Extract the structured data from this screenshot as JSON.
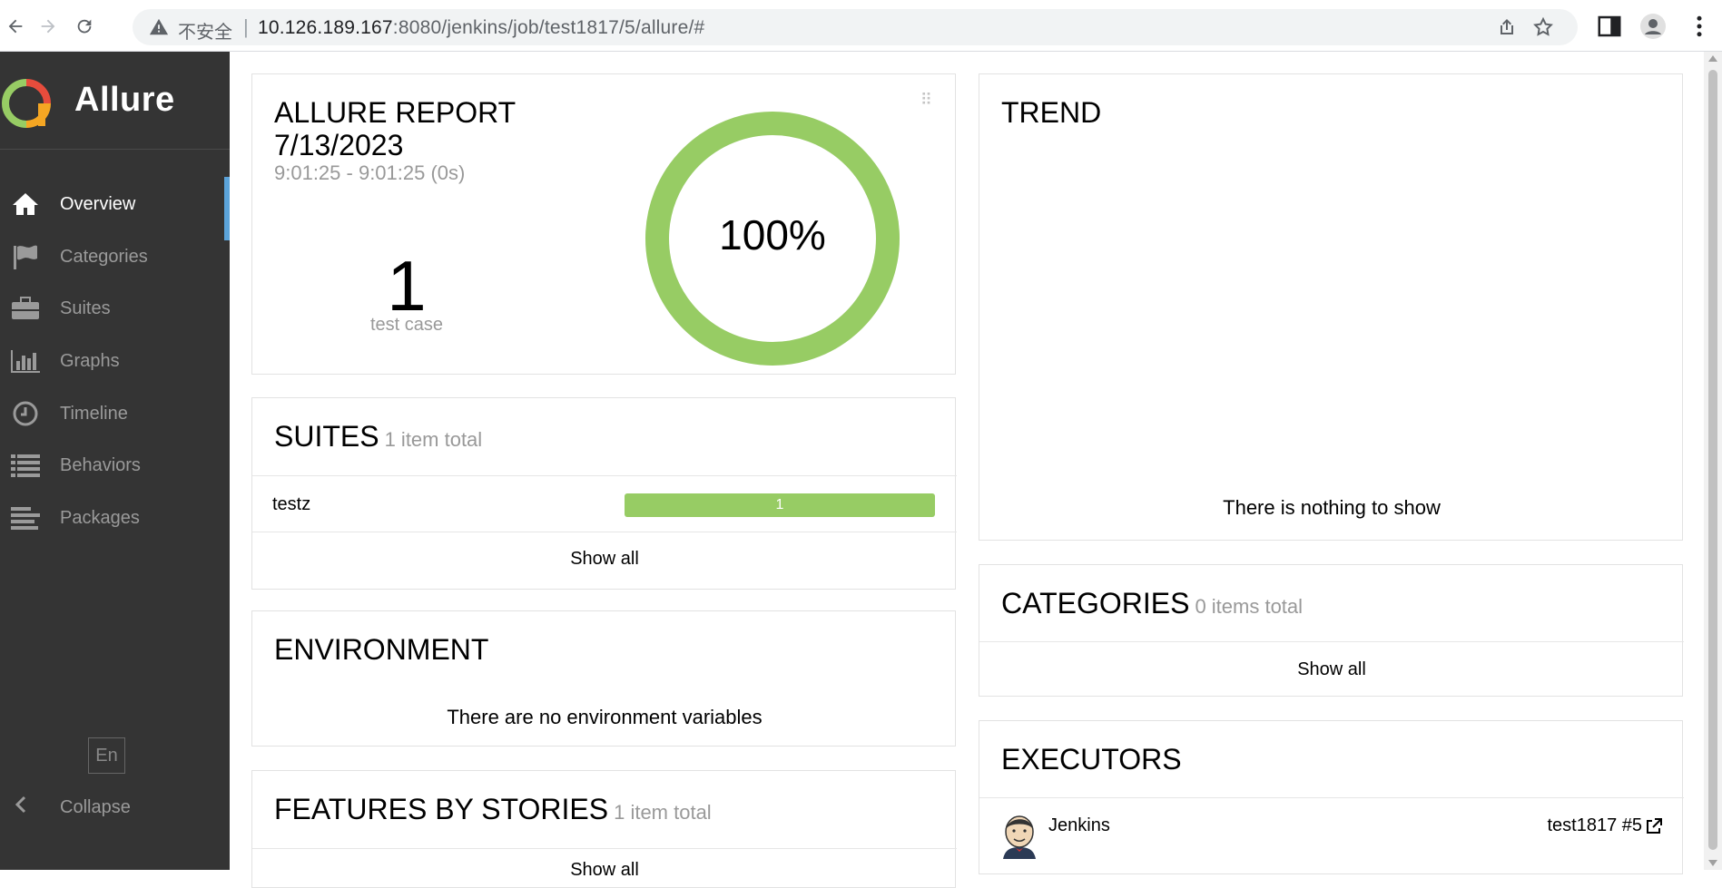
{
  "browser": {
    "insecure_label": "不安全",
    "url_host": "10.126.189.167",
    "url_rest": ":8080/jenkins/job/test1817/5/allure/#"
  },
  "sidebar": {
    "brand": "Allure",
    "items": [
      {
        "label": "Overview",
        "icon": "home-icon",
        "active": true
      },
      {
        "label": "Categories",
        "icon": "flag-icon"
      },
      {
        "label": "Suites",
        "icon": "briefcase-icon"
      },
      {
        "label": "Graphs",
        "icon": "bar-chart-icon"
      },
      {
        "label": "Timeline",
        "icon": "clock-icon"
      },
      {
        "label": "Behaviors",
        "icon": "list-icon"
      },
      {
        "label": "Packages",
        "icon": "align-left-icon"
      }
    ],
    "language": "En",
    "collapse_label": "Collapse"
  },
  "summary": {
    "title_line1": "ALLURE REPORT",
    "title_line2": "7/13/2023",
    "time_range": "9:01:25 - 9:01:25 (0s)",
    "test_count": "1",
    "test_count_label": "test case",
    "pass_percent_label": "100%",
    "pass_fraction": 1.0,
    "pass_color": "#97cc64"
  },
  "suites": {
    "title": "SUITES",
    "count_label": "1 item total",
    "rows": [
      {
        "name": "testz",
        "passed": "1"
      }
    ],
    "show_all": "Show all"
  },
  "environment": {
    "title": "ENVIRONMENT",
    "empty_text": "There are no environment variables"
  },
  "features": {
    "title": "FEATURES BY STORIES",
    "count_label": "1 item total",
    "show_all": "Show all"
  },
  "trend": {
    "title": "TREND",
    "empty_text": "There is nothing to show"
  },
  "categories": {
    "title": "CATEGORIES",
    "count_label": "0 items total",
    "show_all": "Show all"
  },
  "executors": {
    "title": "EXECUTORS",
    "name": "Jenkins",
    "build": "test1817 #5"
  },
  "colors": {
    "sidebar_bg": "#343434",
    "active_indicator": "#5ba3d9",
    "passed": "#97cc64"
  }
}
